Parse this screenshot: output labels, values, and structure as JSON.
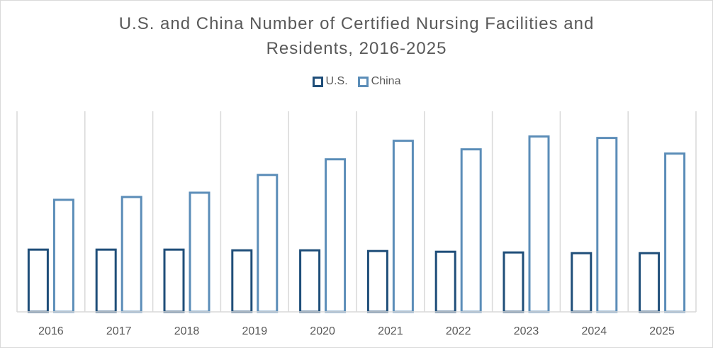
{
  "chart_data": {
    "type": "bar",
    "title_lines": [
      "U.S. and China Number of Certified Nursing Facilities and",
      "Residents, 2016-2025"
    ],
    "categories": [
      "2016",
      "2017",
      "2018",
      "2019",
      "2020",
      "2021",
      "2022",
      "2023",
      "2024",
      "2025"
    ],
    "series": [
      {
        "name": "U.S.",
        "color": "#1f4e79",
        "values": [
          89,
          89,
          89,
          88,
          88,
          87,
          86,
          85,
          84,
          84
        ]
      },
      {
        "name": "China",
        "color": "#5b8db8",
        "values": [
          159,
          163,
          169,
          194,
          216,
          242,
          230,
          248,
          246,
          224
        ]
      }
    ],
    "xlabel": "",
    "ylabel": "",
    "ylim": [
      0,
      282
    ],
    "y_axis_labels_shown": false,
    "gridlines": "vertical category separators",
    "legend_position": "top"
  }
}
